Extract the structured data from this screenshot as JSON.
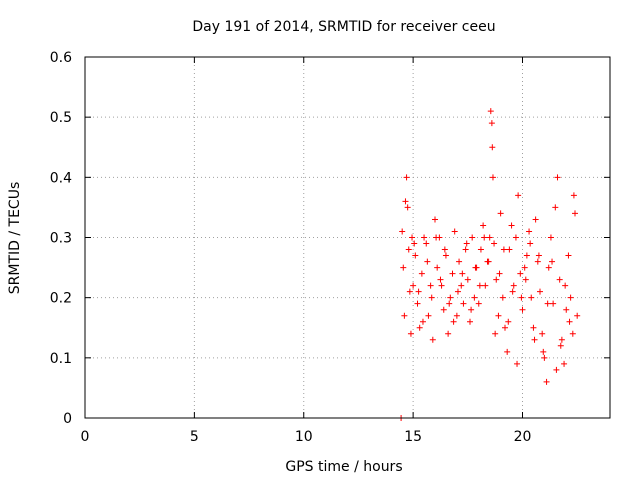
{
  "chart_data": {
    "type": "scatter",
    "title": "Day 191 of 2014, SRMTID for receiver ceeu",
    "xlabel": "GPS time / hours",
    "ylabel": "SRMTID / TECUs",
    "xlim": [
      0,
      24
    ],
    "ylim": [
      0,
      0.6
    ],
    "xticks": [
      0,
      5,
      10,
      15,
      20
    ],
    "xtick_labels": [
      "0",
      "5",
      "10",
      "15",
      "20"
    ],
    "yticks": [
      0,
      0.1,
      0.2,
      0.3,
      0.4,
      0.5,
      0.6
    ],
    "ytick_labels": [
      "0",
      "0.1",
      "0.2",
      "0.3",
      "0.4",
      "0.5",
      "0.6"
    ],
    "grid": true,
    "marker": "+",
    "point_color": "#ff0000",
    "series": [
      {
        "name": "SRMTID",
        "x": [
          14.45,
          14.5,
          14.55,
          14.6,
          14.65,
          14.7,
          14.75,
          14.8,
          14.85,
          14.9,
          14.95,
          15.0,
          15.1,
          15.2,
          15.3,
          15.4,
          15.5,
          15.6,
          15.7,
          15.8,
          15.9,
          16.0,
          16.1,
          16.2,
          16.3,
          16.4,
          16.5,
          16.6,
          16.7,
          16.8,
          16.9,
          17.0,
          17.1,
          17.2,
          17.3,
          17.4,
          17.5,
          17.6,
          17.7,
          17.8,
          17.9,
          18.0,
          18.1,
          18.2,
          18.3,
          18.4,
          18.5,
          18.55,
          18.6,
          18.62,
          18.65,
          18.7,
          18.8,
          18.9,
          19.0,
          19.1,
          19.2,
          19.3,
          19.4,
          19.5,
          19.6,
          19.7,
          19.8,
          19.9,
          20.0,
          20.1,
          20.2,
          20.3,
          20.4,
          20.5,
          20.6,
          20.7,
          20.8,
          20.9,
          21.0,
          21.1,
          21.2,
          21.3,
          21.4,
          21.5,
          21.6,
          21.7,
          21.8,
          21.9,
          22.0,
          22.1,
          22.2,
          22.3,
          22.4,
          22.5,
          15.05,
          15.25,
          15.45,
          15.65,
          15.85,
          16.05,
          16.25,
          16.45,
          16.65,
          16.85,
          17.05,
          17.25,
          17.45,
          17.65,
          17.85,
          18.05,
          18.25,
          18.45,
          18.75,
          18.95,
          19.15,
          19.35,
          19.55,
          19.75,
          19.95,
          20.15,
          20.35,
          20.55,
          20.75,
          20.95,
          21.15,
          21.35,
          21.55,
          21.75,
          21.95,
          22.15,
          22.35
        ],
        "y": [
          0.0,
          0.31,
          0.25,
          0.17,
          0.36,
          0.4,
          0.35,
          0.28,
          0.21,
          0.14,
          0.3,
          0.22,
          0.27,
          0.19,
          0.15,
          0.24,
          0.3,
          0.29,
          0.17,
          0.22,
          0.13,
          0.33,
          0.25,
          0.3,
          0.22,
          0.18,
          0.27,
          0.14,
          0.2,
          0.24,
          0.31,
          0.17,
          0.26,
          0.22,
          0.19,
          0.28,
          0.23,
          0.16,
          0.3,
          0.2,
          0.25,
          0.19,
          0.28,
          0.32,
          0.22,
          0.26,
          0.3,
          0.51,
          0.49,
          0.45,
          0.4,
          0.29,
          0.23,
          0.17,
          0.34,
          0.2,
          0.15,
          0.11,
          0.28,
          0.32,
          0.22,
          0.3,
          0.37,
          0.24,
          0.18,
          0.25,
          0.27,
          0.31,
          0.2,
          0.15,
          0.33,
          0.26,
          0.21,
          0.14,
          0.1,
          0.06,
          0.25,
          0.3,
          0.19,
          0.35,
          0.4,
          0.23,
          0.13,
          0.09,
          0.18,
          0.27,
          0.2,
          0.14,
          0.34,
          0.17,
          0.29,
          0.21,
          0.16,
          0.26,
          0.2,
          0.3,
          0.23,
          0.28,
          0.19,
          0.16,
          0.21,
          0.24,
          0.29,
          0.18,
          0.25,
          0.22,
          0.3,
          0.26,
          0.14,
          0.24,
          0.28,
          0.16,
          0.21,
          0.09,
          0.2,
          0.23,
          0.29,
          0.13,
          0.27,
          0.11,
          0.19,
          0.26,
          0.08,
          0.12,
          0.22,
          0.16,
          0.37
        ]
      }
    ]
  }
}
